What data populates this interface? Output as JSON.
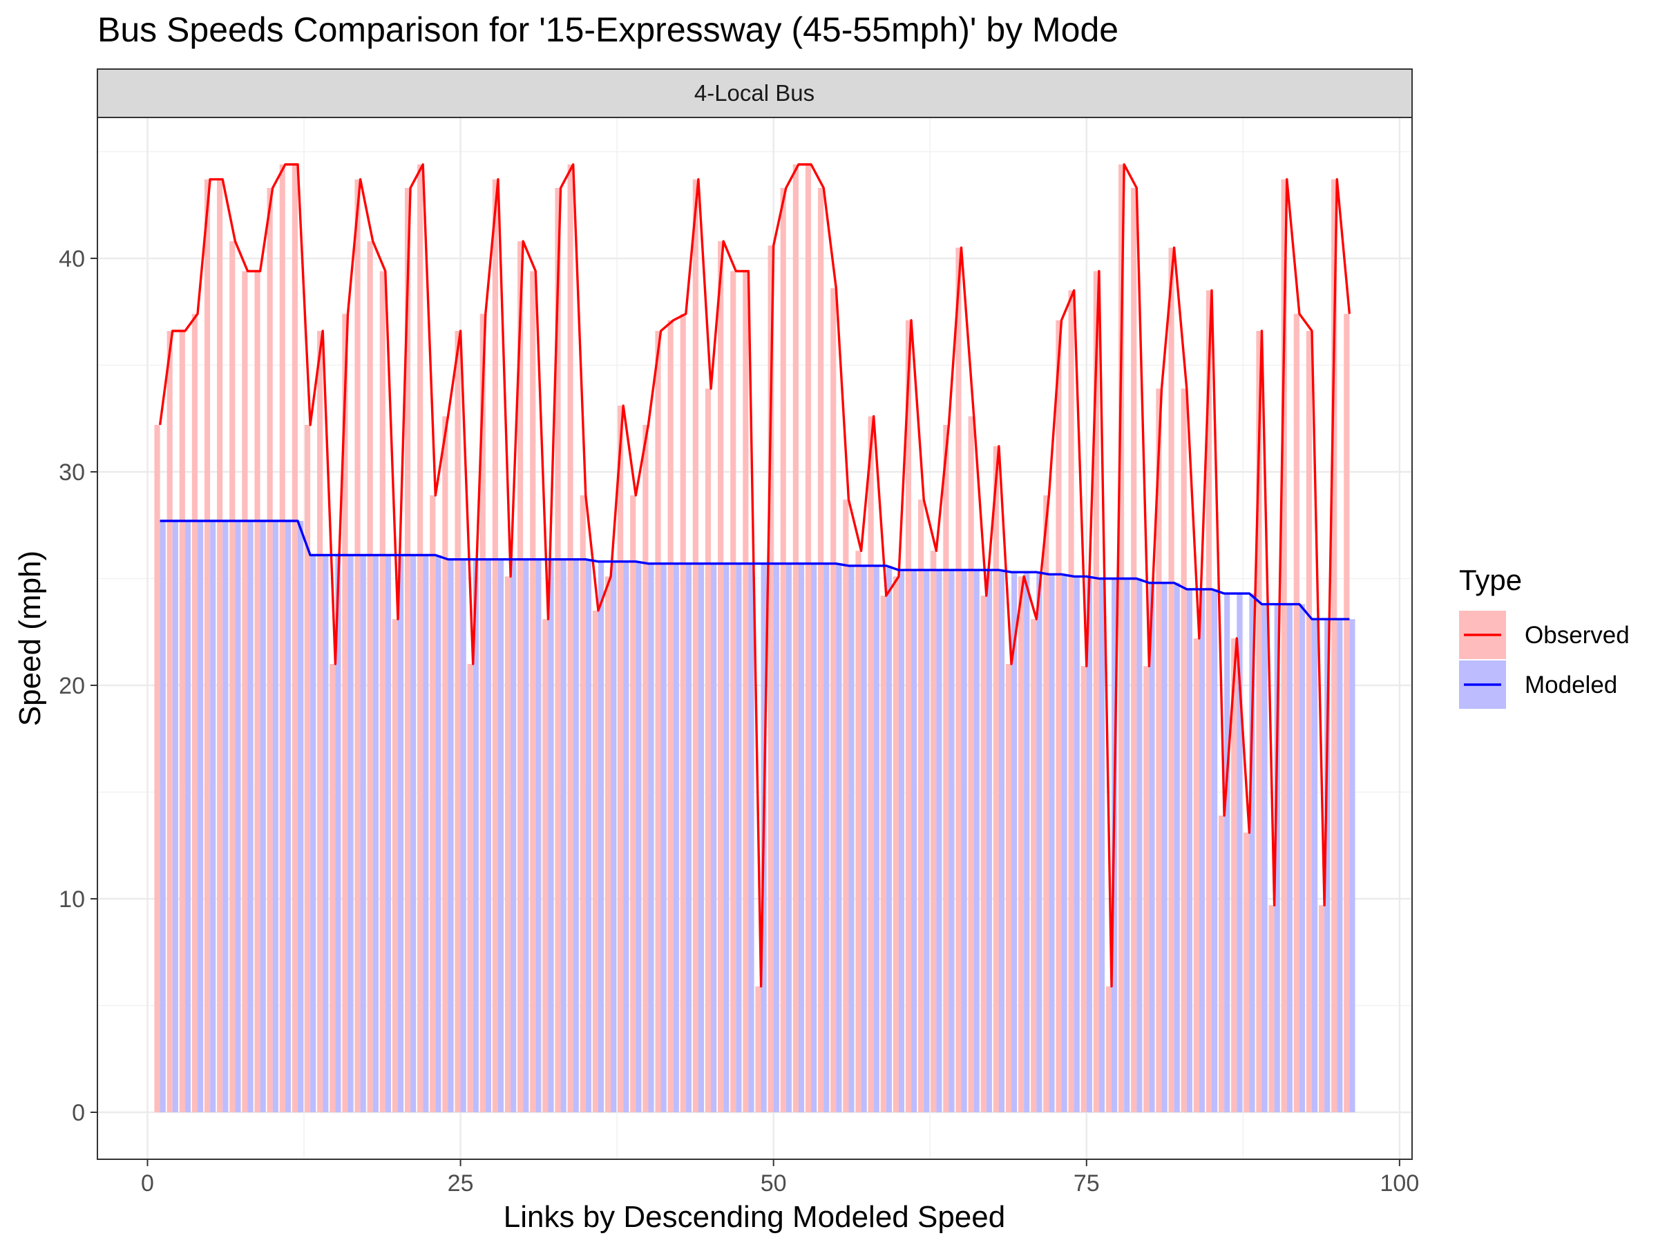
{
  "chart_data": {
    "type": "bar",
    "title": "Bus Speeds Comparison for '15-Expressway (45-55mph)' by Mode",
    "facet": "4-Local Bus",
    "xlabel": "Links by Descending Modeled Speed",
    "ylabel": "Speed (mph)",
    "xlim": [
      -4,
      101
    ],
    "ylim": [
      -2.2,
      46.6
    ],
    "x_ticks": [
      0,
      25,
      50,
      75,
      100
    ],
    "y_ticks": [
      0,
      10,
      20,
      30,
      40
    ],
    "grid": true,
    "legend": {
      "title": "Type",
      "position": "right",
      "items": [
        {
          "label": "Observed",
          "fill": "#ffbcbc",
          "line": "#ff0000"
        },
        {
          "label": "Modeled",
          "fill": "#bcbcff",
          "line": "#0000ff"
        }
      ]
    },
    "x": [
      1,
      2,
      3,
      4,
      5,
      6,
      7,
      8,
      9,
      10,
      11,
      12,
      13,
      14,
      15,
      16,
      17,
      18,
      19,
      20,
      21,
      22,
      23,
      24,
      25,
      26,
      27,
      28,
      29,
      30,
      31,
      32,
      33,
      34,
      35,
      36,
      37,
      38,
      39,
      40,
      41,
      42,
      43,
      44,
      45,
      46,
      47,
      48,
      49,
      50,
      51,
      52,
      53,
      54,
      55,
      56,
      57,
      58,
      59,
      60,
      61,
      62,
      63,
      64,
      65,
      66,
      67,
      68,
      69,
      70,
      71,
      72,
      73,
      74,
      75,
      76,
      77,
      78,
      79,
      80,
      81,
      82,
      83,
      84,
      85,
      86,
      87,
      88,
      89,
      90,
      91,
      92,
      93,
      94,
      95,
      96
    ],
    "series": [
      {
        "name": "Observed",
        "values": [
          32.2,
          36.6,
          36.6,
          37.4,
          43.7,
          43.7,
          40.8,
          39.4,
          39.4,
          43.3,
          44.4,
          44.4,
          32.2,
          36.6,
          21,
          37.4,
          43.7,
          40.8,
          39.4,
          23.1,
          43.3,
          44.4,
          28.9,
          32.6,
          36.6,
          21,
          37.4,
          43.7,
          25.1,
          40.8,
          39.4,
          23.1,
          43.3,
          44.4,
          28.9,
          23.5,
          25.1,
          33.1,
          28.9,
          32.2,
          36.6,
          37.1,
          37.4,
          43.7,
          33.9,
          40.8,
          39.4,
          39.4,
          5.9,
          40.6,
          43.3,
          44.4,
          44.4,
          43.3,
          38.6,
          28.7,
          26.3,
          32.6,
          24.2,
          25.1,
          37.1,
          28.7,
          26.3,
          32.2,
          40.5,
          32.6,
          24.2,
          31.2,
          21,
          25.1,
          23.1,
          28.9,
          37.1,
          38.5,
          20.9,
          39.4,
          5.9,
          44.4,
          43.3,
          20.9,
          33.9,
          40.5,
          33.9,
          22.2,
          38.5,
          13.9,
          22.2,
          13.1,
          36.6,
          9.7,
          43.7,
          37.4,
          36.6,
          9.7,
          43.7,
          37.4
        ]
      },
      {
        "name": "Modeled",
        "values": [
          27.7,
          27.7,
          27.7,
          27.7,
          27.7,
          27.7,
          27.7,
          27.7,
          27.7,
          27.7,
          27.7,
          27.7,
          26.1,
          26.1,
          26.1,
          26.1,
          26.1,
          26.1,
          26.1,
          26.1,
          26.1,
          26.1,
          26.1,
          25.9,
          25.9,
          25.9,
          25.9,
          25.9,
          25.9,
          25.9,
          25.9,
          25.9,
          25.9,
          25.9,
          25.9,
          25.8,
          25.8,
          25.8,
          25.8,
          25.7,
          25.7,
          25.7,
          25.7,
          25.7,
          25.7,
          25.7,
          25.7,
          25.7,
          25.7,
          25.7,
          25.7,
          25.7,
          25.7,
          25.7,
          25.7,
          25.6,
          25.6,
          25.6,
          25.6,
          25.4,
          25.4,
          25.4,
          25.4,
          25.4,
          25.4,
          25.4,
          25.4,
          25.4,
          25.3,
          25.3,
          25.3,
          25.2,
          25.2,
          25.1,
          25.1,
          25,
          25,
          25,
          25,
          24.8,
          24.8,
          24.8,
          24.5,
          24.5,
          24.5,
          24.3,
          24.3,
          24.3,
          23.8,
          23.8,
          23.8,
          23.8,
          23.1,
          23.1,
          23.1,
          23.1
        ]
      }
    ]
  }
}
